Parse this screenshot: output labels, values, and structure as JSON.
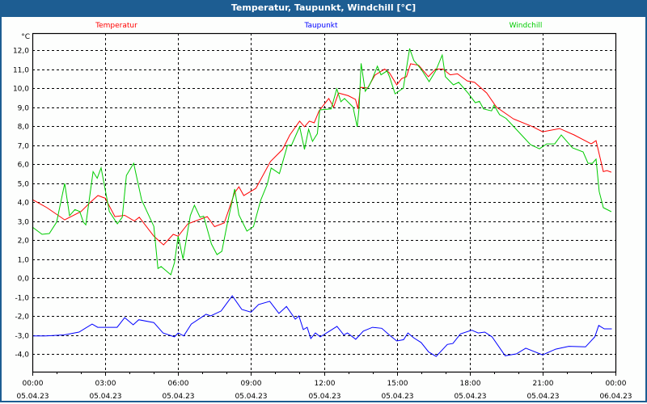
{
  "window_title": "Temperatur, Taupunkt, Windchill [°C]",
  "chart_data": {
    "type": "line",
    "title": "Temperatur, Taupunkt, Windchill [°C]",
    "ylabel": "°C",
    "xlabel": "",
    "ylim": [
      -4.0,
      12.0
    ],
    "xlim_hours": [
      0,
      24
    ],
    "grid": true,
    "legend_placement": "top",
    "yticks": [
      "12,0",
      "11,0",
      "10,0",
      "9,0",
      "8,0",
      "7,0",
      "6,0",
      "5,0",
      "4,0",
      "3,0",
      "2,0",
      "1,0",
      "0,0",
      "-1,0",
      "-2,0",
      "-3,0",
      "-4,0"
    ],
    "ytick_values": [
      12,
      11,
      10,
      9,
      8,
      7,
      6,
      5,
      4,
      3,
      2,
      1,
      0,
      -1,
      -2,
      -3,
      -4
    ],
    "xticks": [
      {
        "time": "00:00",
        "date": "05.04.23",
        "hour": 0
      },
      {
        "time": "03:00",
        "date": "05.04.23",
        "hour": 3
      },
      {
        "time": "06:00",
        "date": "05.04.23",
        "hour": 6
      },
      {
        "time": "09:00",
        "date": "05.04.23",
        "hour": 9
      },
      {
        "time": "12:00",
        "date": "05.04.23",
        "hour": 12
      },
      {
        "time": "15:00",
        "date": "05.04.23",
        "hour": 15
      },
      {
        "time": "18:00",
        "date": "05.04.23",
        "hour": 18
      },
      {
        "time": "21:00",
        "date": "05.04.23",
        "hour": 21
      },
      {
        "time": "00:00",
        "date": "06.04.23",
        "hour": 24
      }
    ],
    "series": [
      {
        "name": "Temperatur",
        "color": "#ff0000",
        "points": [
          [
            0,
            4.13
          ],
          [
            0.6,
            3.7
          ],
          [
            1.33,
            3.06
          ],
          [
            2.0,
            3.5
          ],
          [
            2.4,
            4.0
          ],
          [
            2.7,
            4.34
          ],
          [
            3.0,
            4.2
          ],
          [
            3.4,
            3.23
          ],
          [
            3.8,
            3.3
          ],
          [
            4.2,
            3.0
          ],
          [
            4.4,
            3.2
          ],
          [
            5.0,
            2.2
          ],
          [
            5.4,
            1.74
          ],
          [
            5.8,
            2.3
          ],
          [
            6.0,
            2.2
          ],
          [
            6.4,
            2.85
          ],
          [
            7.2,
            3.23
          ],
          [
            7.5,
            2.7
          ],
          [
            7.9,
            2.9
          ],
          [
            8.33,
            4.5
          ],
          [
            8.5,
            4.8
          ],
          [
            8.7,
            4.34
          ],
          [
            9.2,
            4.72
          ],
          [
            9.8,
            6.13
          ],
          [
            10.3,
            6.77
          ],
          [
            10.6,
            7.53
          ],
          [
            11.0,
            8.26
          ],
          [
            11.2,
            7.96
          ],
          [
            11.4,
            8.26
          ],
          [
            11.6,
            8.17
          ],
          [
            11.8,
            8.8
          ],
          [
            12.2,
            9.45
          ],
          [
            12.4,
            9.0
          ],
          [
            12.6,
            9.74
          ],
          [
            13.0,
            9.6
          ],
          [
            13.3,
            9.4
          ],
          [
            13.4,
            8.9
          ],
          [
            13.5,
            10.04
          ],
          [
            13.8,
            10.0
          ],
          [
            14.1,
            10.68
          ],
          [
            14.5,
            11.0
          ],
          [
            14.7,
            10.8
          ],
          [
            15.0,
            10.17
          ],
          [
            15.2,
            10.5
          ],
          [
            15.4,
            10.6
          ],
          [
            15.57,
            11.28
          ],
          [
            15.9,
            11.2
          ],
          [
            16.3,
            10.6
          ],
          [
            16.6,
            11.0
          ],
          [
            16.9,
            11.0
          ],
          [
            17.2,
            10.7
          ],
          [
            17.5,
            10.75
          ],
          [
            17.9,
            10.38
          ],
          [
            18.2,
            10.3
          ],
          [
            18.7,
            9.74
          ],
          [
            19.1,
            9.0
          ],
          [
            19.8,
            8.38
          ],
          [
            20.6,
            7.96
          ],
          [
            21.0,
            7.7
          ],
          [
            21.7,
            7.87
          ],
          [
            22.3,
            7.53
          ],
          [
            23.0,
            7.06
          ],
          [
            23.2,
            7.23
          ],
          [
            23.5,
            5.6
          ],
          [
            23.65,
            5.65
          ],
          [
            23.83,
            5.57
          ]
        ]
      },
      {
        "name": "Taupunkt",
        "color": "#0000ff",
        "points": [
          [
            0,
            -3.05
          ],
          [
            0.54,
            -3.05
          ],
          [
            1.31,
            -3.0
          ],
          [
            1.92,
            -2.85
          ],
          [
            2.46,
            -2.43
          ],
          [
            2.69,
            -2.6
          ],
          [
            3.49,
            -2.6
          ],
          [
            3.8,
            -2.09
          ],
          [
            4.15,
            -2.47
          ],
          [
            4.38,
            -2.2
          ],
          [
            5.0,
            -2.35
          ],
          [
            5.38,
            -2.9
          ],
          [
            5.85,
            -3.1
          ],
          [
            6.0,
            -2.9
          ],
          [
            6.23,
            -3.05
          ],
          [
            6.54,
            -2.43
          ],
          [
            7.15,
            -1.91
          ],
          [
            7.34,
            -2.0
          ],
          [
            7.77,
            -1.74
          ],
          [
            8.23,
            -0.94
          ],
          [
            8.62,
            -1.66
          ],
          [
            9.0,
            -1.8
          ],
          [
            9.31,
            -1.4
          ],
          [
            9.77,
            -1.23
          ],
          [
            10.15,
            -1.87
          ],
          [
            10.46,
            -1.5
          ],
          [
            10.82,
            -2.17
          ],
          [
            10.97,
            -2.0
          ],
          [
            11.15,
            -2.72
          ],
          [
            11.31,
            -2.6
          ],
          [
            11.46,
            -3.19
          ],
          [
            11.65,
            -2.9
          ],
          [
            11.85,
            -3.1
          ],
          [
            12.23,
            -2.8
          ],
          [
            12.54,
            -2.55
          ],
          [
            12.82,
            -3.0
          ],
          [
            12.97,
            -2.9
          ],
          [
            13.31,
            -3.23
          ],
          [
            13.62,
            -2.8
          ],
          [
            14.0,
            -2.6
          ],
          [
            14.38,
            -2.65
          ],
          [
            14.69,
            -3.0
          ],
          [
            15.0,
            -3.32
          ],
          [
            15.28,
            -3.25
          ],
          [
            15.46,
            -2.9
          ],
          [
            15.69,
            -3.15
          ],
          [
            16.0,
            -3.4
          ],
          [
            16.31,
            -3.9
          ],
          [
            16.62,
            -4.13
          ],
          [
            17.08,
            -3.5
          ],
          [
            17.31,
            -3.45
          ],
          [
            17.62,
            -2.95
          ],
          [
            18.08,
            -2.75
          ],
          [
            18.35,
            -2.9
          ],
          [
            18.62,
            -2.85
          ],
          [
            18.92,
            -3.1
          ],
          [
            19.46,
            -4.1
          ],
          [
            19.92,
            -4.0
          ],
          [
            20.31,
            -3.7
          ],
          [
            21.0,
            -4.05
          ],
          [
            21.54,
            -3.75
          ],
          [
            22.08,
            -3.6
          ],
          [
            22.77,
            -3.63
          ],
          [
            23.15,
            -3.1
          ],
          [
            23.31,
            -2.5
          ],
          [
            23.54,
            -2.68
          ],
          [
            23.85,
            -2.68
          ]
        ]
      },
      {
        "name": "Windchill",
        "color": "#00cc00",
        "points": [
          [
            0,
            2.68
          ],
          [
            0.4,
            2.3
          ],
          [
            0.7,
            2.34
          ],
          [
            1.0,
            2.94
          ],
          [
            1.33,
            4.98
          ],
          [
            1.53,
            3.28
          ],
          [
            1.75,
            3.6
          ],
          [
            1.95,
            3.5
          ],
          [
            2.1,
            2.94
          ],
          [
            2.2,
            2.8
          ],
          [
            2.5,
            5.6
          ],
          [
            2.67,
            5.25
          ],
          [
            2.83,
            5.8
          ],
          [
            3.17,
            3.5
          ],
          [
            3.5,
            2.85
          ],
          [
            3.7,
            3.2
          ],
          [
            3.87,
            5.4
          ],
          [
            4.17,
            6.04
          ],
          [
            4.5,
            4.1
          ],
          [
            5.0,
            2.72
          ],
          [
            5.17,
            0.5
          ],
          [
            5.3,
            0.6
          ],
          [
            5.7,
            0.17
          ],
          [
            5.85,
            0.8
          ],
          [
            6.0,
            2.2
          ],
          [
            6.2,
            1.0
          ],
          [
            6.5,
            3.28
          ],
          [
            6.67,
            3.83
          ],
          [
            6.9,
            3.2
          ],
          [
            7.05,
            3.25
          ],
          [
            7.37,
            1.79
          ],
          [
            7.6,
            1.23
          ],
          [
            7.8,
            1.4
          ],
          [
            8.0,
            2.7
          ],
          [
            8.33,
            4.68
          ],
          [
            8.5,
            3.32
          ],
          [
            8.83,
            2.47
          ],
          [
            9.1,
            2.7
          ],
          [
            9.4,
            4.1
          ],
          [
            9.67,
            4.94
          ],
          [
            9.83,
            5.79
          ],
          [
            10.17,
            5.5
          ],
          [
            10.5,
            6.98
          ],
          [
            10.67,
            7.0
          ],
          [
            11.0,
            7.96
          ],
          [
            11.2,
            6.77
          ],
          [
            11.37,
            7.83
          ],
          [
            11.53,
            7.19
          ],
          [
            11.73,
            7.6
          ],
          [
            11.83,
            8.85
          ],
          [
            12.3,
            8.9
          ],
          [
            12.53,
            9.96
          ],
          [
            12.7,
            9.28
          ],
          [
            12.85,
            9.45
          ],
          [
            13.2,
            9.0
          ],
          [
            13.37,
            7.96
          ],
          [
            13.45,
            9.0
          ],
          [
            13.53,
            11.3
          ],
          [
            13.7,
            9.83
          ],
          [
            13.85,
            10.1
          ],
          [
            14.0,
            10.5
          ],
          [
            14.2,
            11.15
          ],
          [
            14.35,
            10.7
          ],
          [
            14.6,
            10.9
          ],
          [
            14.7,
            10.6
          ],
          [
            14.93,
            9.7
          ],
          [
            15.27,
            10.0
          ],
          [
            15.53,
            12.08
          ],
          [
            15.7,
            11.45
          ],
          [
            16.0,
            11.0
          ],
          [
            16.33,
            10.34
          ],
          [
            16.6,
            10.9
          ],
          [
            16.87,
            11.74
          ],
          [
            17.0,
            10.6
          ],
          [
            17.33,
            10.17
          ],
          [
            17.55,
            10.3
          ],
          [
            17.93,
            9.74
          ],
          [
            18.23,
            9.23
          ],
          [
            18.4,
            9.3
          ],
          [
            18.57,
            8.9
          ],
          [
            18.9,
            8.8
          ],
          [
            19.0,
            9.1
          ],
          [
            19.23,
            8.6
          ],
          [
            19.5,
            8.4
          ],
          [
            20.23,
            7.4
          ],
          [
            20.5,
            7.02
          ],
          [
            20.87,
            6.8
          ],
          [
            21.17,
            7.06
          ],
          [
            21.5,
            7.06
          ],
          [
            21.77,
            7.53
          ],
          [
            22.23,
            6.85
          ],
          [
            22.67,
            6.64
          ],
          [
            22.87,
            6.04
          ],
          [
            23.05,
            6.04
          ],
          [
            23.2,
            6.26
          ],
          [
            23.33,
            4.55
          ],
          [
            23.5,
            3.7
          ],
          [
            23.83,
            3.49
          ]
        ]
      }
    ]
  }
}
